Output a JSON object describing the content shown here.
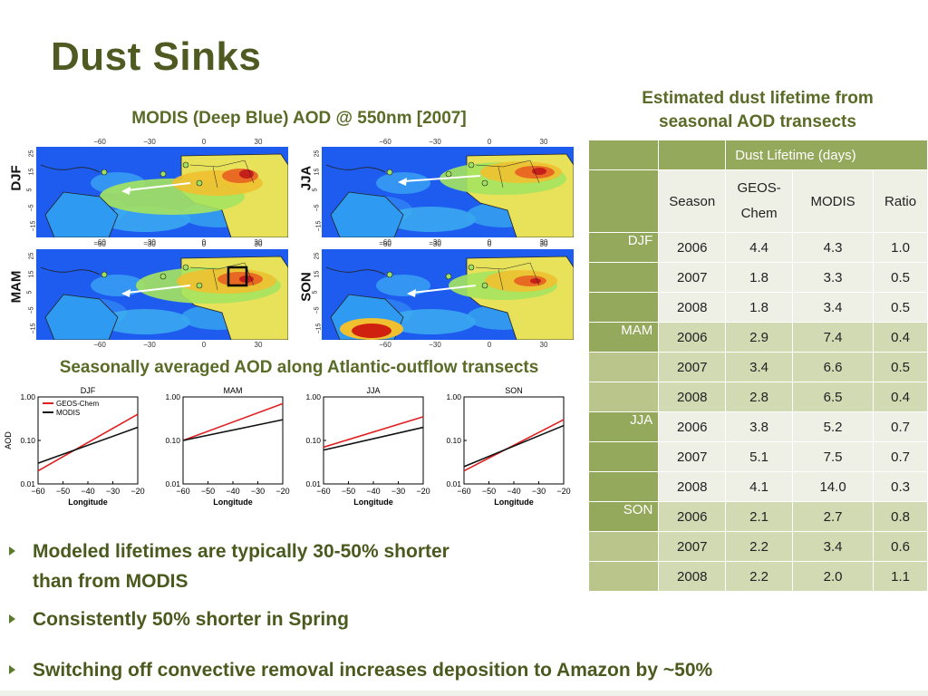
{
  "title": "Dust Sinks",
  "modis_caption": "MODIS (Deep Blue) AOD @ 550nm [2007]",
  "transect_caption": "Seasonally averaged AOD along Atlantic-outflow transects",
  "table_caption_line1": "Estimated dust lifetime from",
  "table_caption_line2": "seasonal AOD transects",
  "maps": {
    "lon_ticks": [
      "−60",
      "−30",
      "0",
      "30"
    ],
    "lat_ticks": [
      "25",
      "15",
      "5",
      "−5",
      "−15"
    ],
    "panels": [
      {
        "season": "DJF"
      },
      {
        "season": "JJA"
      },
      {
        "season": "MAM"
      },
      {
        "season": "SON"
      }
    ]
  },
  "chart_data": [
    {
      "type": "line",
      "title": "DJF",
      "xlabel": "Longitude",
      "ylabel": "AOD",
      "ylim": [
        0.01,
        1.0
      ],
      "ylog": true,
      "xlim": [
        -60,
        -20
      ],
      "xticks": [
        "−60",
        "−50",
        "−40",
        "−30",
        "−20"
      ],
      "yticks": [
        "1.00",
        "0.10",
        "0.01"
      ],
      "legend": [
        "GEOS-Chem",
        "MODIS"
      ],
      "series": [
        {
          "name": "GEOS-Chem",
          "color": "#e02020",
          "x": [
            -60,
            -20
          ],
          "y": [
            0.02,
            0.4
          ]
        },
        {
          "name": "MODIS",
          "color": "#111111",
          "x": [
            -60,
            -20
          ],
          "y": [
            0.03,
            0.2
          ]
        }
      ]
    },
    {
      "type": "line",
      "title": "MAM",
      "xlabel": "Longitude",
      "ylim": [
        0.01,
        1.0
      ],
      "ylog": true,
      "xlim": [
        -60,
        -20
      ],
      "xticks": [
        "−60",
        "−50",
        "−40",
        "−30",
        "−20"
      ],
      "yticks": [
        "1.00",
        "0.10",
        "0.01"
      ],
      "series": [
        {
          "name": "GEOS-Chem",
          "color": "#e02020",
          "x": [
            -60,
            -20
          ],
          "y": [
            0.1,
            0.7
          ]
        },
        {
          "name": "MODIS",
          "color": "#111111",
          "x": [
            -60,
            -20
          ],
          "y": [
            0.1,
            0.3
          ]
        }
      ]
    },
    {
      "type": "line",
      "title": "JJA",
      "xlabel": "Longitude",
      "ylim": [
        0.01,
        1.0
      ],
      "ylog": true,
      "xlim": [
        -60,
        -20
      ],
      "xticks": [
        "−60",
        "−50",
        "−40",
        "−30",
        "−20"
      ],
      "yticks": [
        "1.00",
        "0.10",
        "0.01"
      ],
      "series": [
        {
          "name": "GEOS-Chem",
          "color": "#e02020",
          "x": [
            -60,
            -20
          ],
          "y": [
            0.07,
            0.35
          ]
        },
        {
          "name": "MODIS",
          "color": "#111111",
          "x": [
            -60,
            -20
          ],
          "y": [
            0.06,
            0.2
          ]
        }
      ]
    },
    {
      "type": "line",
      "title": "SON",
      "xlabel": "Longitude",
      "ylim": [
        0.01,
        1.0
      ],
      "ylog": true,
      "xlim": [
        -60,
        -20
      ],
      "xticks": [
        "−60",
        "−50",
        "−40",
        "−30",
        "−20"
      ],
      "yticks": [
        "1.00",
        "0.10",
        "0.01"
      ],
      "series": [
        {
          "name": "GEOS-Chem",
          "color": "#e02020",
          "x": [
            -60,
            -20
          ],
          "y": [
            0.02,
            0.3
          ]
        },
        {
          "name": "MODIS",
          "color": "#111111",
          "x": [
            -60,
            -20
          ],
          "y": [
            0.025,
            0.22
          ]
        }
      ]
    }
  ],
  "table": {
    "group_header": "Dust Lifetime (days)",
    "col_season": "Season",
    "col_geos_line1": "GEOS-",
    "col_geos_line2": "Chem",
    "col_modis": "MODIS",
    "col_ratio": "Ratio",
    "rows": [
      {
        "group": "DJF",
        "year": "2006",
        "geos": "4.4",
        "modis": "4.3",
        "ratio": "1.0"
      },
      {
        "group": "",
        "year": "2007",
        "geos": "1.8",
        "modis": "3.3",
        "ratio": "0.5"
      },
      {
        "group": "",
        "year": "2008",
        "geos": "1.8",
        "modis": "3.4",
        "ratio": "0.5"
      },
      {
        "group": "MAM",
        "year": "2006",
        "geos": "2.9",
        "modis": "7.4",
        "ratio": "0.4"
      },
      {
        "group": "",
        "year": "2007",
        "geos": "3.4",
        "modis": "6.6",
        "ratio": "0.5"
      },
      {
        "group": "",
        "year": "2008",
        "geos": "2.8",
        "modis": "6.5",
        "ratio": "0.4"
      },
      {
        "group": "JJA",
        "year": "2006",
        "geos": "3.8",
        "modis": "5.2",
        "ratio": "0.7"
      },
      {
        "group": "",
        "year": "2007",
        "geos": "5.1",
        "modis": "7.5",
        "ratio": "0.7"
      },
      {
        "group": "",
        "year": "2008",
        "geos": "4.1",
        "modis": "14.0",
        "ratio": "0.3"
      },
      {
        "group": "SON",
        "year": "2006",
        "geos": "2.1",
        "modis": "2.7",
        "ratio": "0.8"
      },
      {
        "group": "",
        "year": "2007",
        "geos": "2.2",
        "modis": "3.4",
        "ratio": "0.6"
      },
      {
        "group": "",
        "year": "2008",
        "geos": "2.2",
        "modis": "2.0",
        "ratio": "1.1"
      }
    ]
  },
  "bullets": [
    "Modeled lifetimes are typically 30-50% shorter",
    "than from MODIS",
    "Consistently 50% shorter in Spring",
    "Switching off convective removal increases deposition to Amazon by ~50%"
  ],
  "colors": {
    "title": "#4f5a22",
    "caption": "#596b26",
    "table_header": "#94a95b",
    "row_light": "#eef0e6",
    "row_dark": "#d2dab4"
  }
}
